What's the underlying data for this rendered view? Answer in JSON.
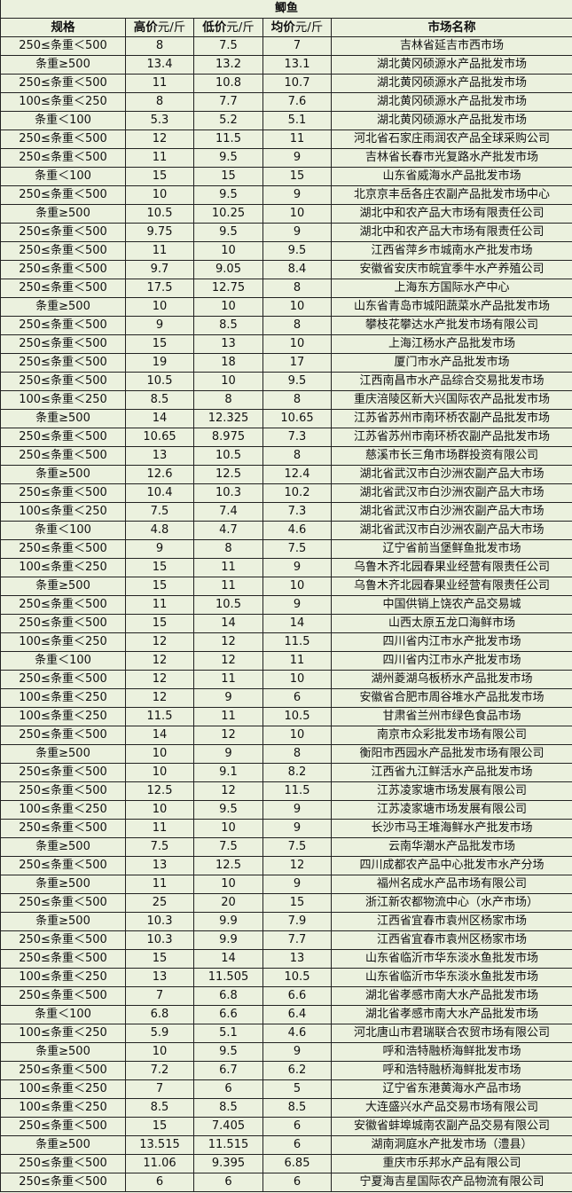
{
  "title": "鲫鱼",
  "headers": [
    {
      "label": "规格",
      "unit": ""
    },
    {
      "label": "高价",
      "unit": "元/斤"
    },
    {
      "label": "低价",
      "unit": "元/斤"
    },
    {
      "label": "均价",
      "unit": "元/斤"
    },
    {
      "label": "市场名称",
      "unit": ""
    }
  ],
  "rows": [
    [
      "250≤条重＜500",
      "8",
      "7.5",
      "7",
      "吉林省延吉市西市场"
    ],
    [
      "条重≥500",
      "13.4",
      "13.2",
      "13.1",
      "湖北黄冈硕源水产品批发市场"
    ],
    [
      "250≤条重＜500",
      "11",
      "10.8",
      "10.7",
      "湖北黄冈硕源水产品批发市场"
    ],
    [
      "100≤条重＜250",
      "8",
      "7.7",
      "7.6",
      "湖北黄冈硕源水产品批发市场"
    ],
    [
      "条重＜100",
      "5.3",
      "5.2",
      "5.1",
      "湖北黄冈硕源水产品批发市场"
    ],
    [
      "250≤条重＜500",
      "12",
      "11.5",
      "11",
      "河北省石家庄雨润农产品全球采购公司"
    ],
    [
      "250≤条重＜500",
      "11",
      "9.5",
      "9",
      "吉林省长春市光复路水产批发市场"
    ],
    [
      "条重＜100",
      "15",
      "15",
      "15",
      "山东省威海水产品批发市场"
    ],
    [
      "250≤条重＜500",
      "10",
      "9.5",
      "9",
      "北京京丰岳各庄农副产品批发市场中心"
    ],
    [
      "条重≥500",
      "10.5",
      "10.25",
      "10",
      "湖北中和农产品大市场有限责任公司"
    ],
    [
      "250≤条重＜500",
      "9.75",
      "9.5",
      "9",
      "湖北中和农产品大市场有限责任公司"
    ],
    [
      "250≤条重＜500",
      "11",
      "10",
      "9.5",
      "江西省萍乡市城南水产批发市场"
    ],
    [
      "250≤条重＜500",
      "9.7",
      "9.05",
      "8.4",
      "安徽省安庆市皖宜季牛水产养殖公司"
    ],
    [
      "250≤条重＜500",
      "17.5",
      "12.75",
      "8",
      "上海东方国际水产中心"
    ],
    [
      "条重≥500",
      "10",
      "10",
      "10",
      "山东省青岛市城阳蔬菜水产品批发市场"
    ],
    [
      "250≤条重＜500",
      "9",
      "8.5",
      "8",
      "攀枝花攀达水产批发市场有限公司"
    ],
    [
      "250≤条重＜500",
      "15",
      "13",
      "10",
      "上海江杨水产品批发市场"
    ],
    [
      "250≤条重＜500",
      "19",
      "18",
      "17",
      "厦门市水产品批发市场"
    ],
    [
      "250≤条重＜500",
      "10.5",
      "10",
      "9.5",
      "江西南昌市水产品综合交易批发市场"
    ],
    [
      "100≤条重＜250",
      "8.5",
      "8",
      "8",
      "重庆涪陵区新大兴国际农产品批发市场"
    ],
    [
      "条重≥500",
      "14",
      "12.325",
      "10.65",
      "江苏省苏州市南环桥农副产品批发市场"
    ],
    [
      "250≤条重＜500",
      "10.65",
      "8.975",
      "7.3",
      "江苏省苏州市南环桥农副产品批发市场"
    ],
    [
      "250≤条重＜500",
      "13",
      "10.5",
      "8",
      "慈溪市长三角市场群投资有限公司"
    ],
    [
      "条重≥500",
      "12.6",
      "12.5",
      "12.4",
      "湖北省武汉市白沙洲农副产品大市场"
    ],
    [
      "250≤条重＜500",
      "10.4",
      "10.3",
      "10.2",
      "湖北省武汉市白沙洲农副产品大市场"
    ],
    [
      "100≤条重＜250",
      "7.5",
      "7.4",
      "7.3",
      "湖北省武汉市白沙洲农副产品大市场"
    ],
    [
      "条重＜100",
      "4.8",
      "4.7",
      "4.6",
      "湖北省武汉市白沙洲农副产品大市场"
    ],
    [
      "250≤条重＜500",
      "9",
      "8",
      "7.5",
      "辽宁省前当堡鲜鱼批发市场"
    ],
    [
      "100≤条重＜250",
      "15",
      "11",
      "9",
      "乌鲁木齐北园春果业经营有限责任公司"
    ],
    [
      "条重≥500",
      "15",
      "11",
      "10",
      "乌鲁木齐北园春果业经营有限责任公司"
    ],
    [
      "250≤条重＜500",
      "11",
      "10.5",
      "9",
      "中国供销上饶农产品交易城"
    ],
    [
      "250≤条重＜500",
      "15",
      "14",
      "14",
      "山西太原五龙口海鲜市场"
    ],
    [
      "100≤条重＜250",
      "12",
      "12",
      "11.5",
      "四川省内江市水产批发市场"
    ],
    [
      "条重＜100",
      "12",
      "12",
      "11",
      "四川省内江市水产批发市场"
    ],
    [
      "250≤条重＜500",
      "12",
      "11",
      "10",
      "湖州菱湖乌板桥水产品批发市场"
    ],
    [
      "100≤条重＜250",
      "12",
      "9",
      "6",
      "安徽省合肥市周谷堆水产品批发市场"
    ],
    [
      "100≤条重＜250",
      "11.5",
      "11",
      "10.5",
      "甘肃省兰州市绿色食品市场"
    ],
    [
      "250≤条重＜500",
      "14",
      "12",
      "10",
      "南京市众彩批发市场有限公司"
    ],
    [
      "条重≥500",
      "10",
      "9",
      "8",
      "衡阳市西园水产品批发市场有限公司"
    ],
    [
      "250≤条重＜500",
      "10",
      "9.1",
      "8.2",
      "江西省九江鲜活水产品批发市场"
    ],
    [
      "250≤条重＜500",
      "12.5",
      "12",
      "11.5",
      "江苏凌家塘市场发展有限公司"
    ],
    [
      "100≤条重＜250",
      "10",
      "9.5",
      "9",
      "江苏凌家塘市场发展有限公司"
    ],
    [
      "250≤条重＜500",
      "11",
      "10",
      "9",
      "长沙市马王堆海鲜水产批发市场"
    ],
    [
      "条重≥500",
      "7.5",
      "7.5",
      "7.5",
      "云南华潮水产品批发市场"
    ],
    [
      "250≤条重＜500",
      "13",
      "12.5",
      "12",
      "四川成都农产品中心批发市水产分场"
    ],
    [
      "条重≥500",
      "11",
      "10",
      "9",
      "福州名成水产品市场有限公司"
    ],
    [
      "250≤条重＜500",
      "25",
      "20",
      "15",
      "浙江新农都物流中心（水产市场）"
    ],
    [
      "条重≥500",
      "10.3",
      "9.9",
      "7.9",
      "江西省宜春市袁州区杨家市场"
    ],
    [
      "250≤条重＜500",
      "10.3",
      "9.9",
      "7.7",
      "江西省宜春市袁州区杨家市场"
    ],
    [
      "250≤条重＜500",
      "15",
      "14",
      "13",
      "山东省临沂市华东淡水鱼批发市场"
    ],
    [
      "100≤条重＜250",
      "13",
      "11.505",
      "10.5",
      "山东省临沂市华东淡水鱼批发市场"
    ],
    [
      "250≤条重＜500",
      "7",
      "6.8",
      "6.6",
      "湖北省孝感市南大水产品批发市场"
    ],
    [
      "条重＜100",
      "6.8",
      "6.6",
      "6.4",
      "湖北省孝感市南大水产品批发市场"
    ],
    [
      "100≤条重＜250",
      "5.9",
      "5.1",
      "4.6",
      "河北唐山市君瑞联合农贸市场有限公司"
    ],
    [
      "条重≥500",
      "10",
      "9.5",
      "9",
      "呼和浩特融桥海鲜批发市场"
    ],
    [
      "250≤条重＜500",
      "7.2",
      "6.7",
      "6.2",
      "呼和浩特融桥海鲜批发市场"
    ],
    [
      "100≤条重＜250",
      "7",
      "6",
      "5",
      "辽宁省东港黄海水产品市场"
    ],
    [
      "100≤条重＜250",
      "8.5",
      "8.5",
      "8.5",
      "大连盛兴水产品交易市场有限公司"
    ],
    [
      "250≤条重＜500",
      "15",
      "7.405",
      "6",
      "安徽省蚌埠城南农副产品交易有限公司"
    ],
    [
      "条重≥500",
      "13.515",
      "11.515",
      "6",
      "湖南洞庭水产批发市场（澧县）"
    ],
    [
      "250≤条重＜500",
      "11.06",
      "9.395",
      "6.85",
      "重庆市乐邦水产品有限公司"
    ],
    [
      "250≤条重＜500",
      "6",
      "6",
      "6",
      "宁夏海吉星国际农产品物流有限公司"
    ]
  ]
}
